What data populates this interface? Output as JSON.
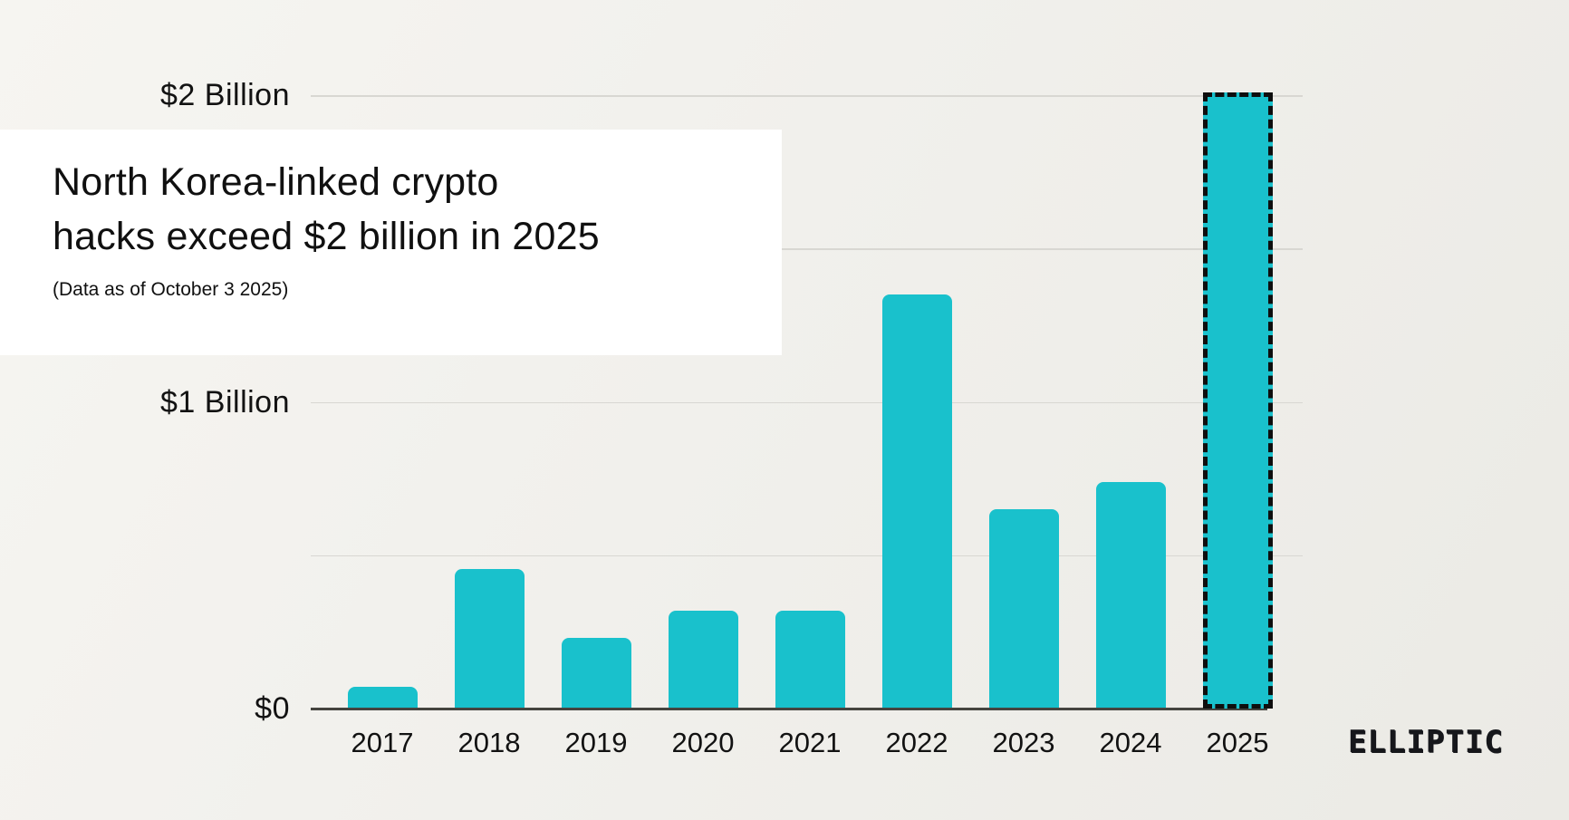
{
  "title_card": {
    "title_line1": "North Korea-linked crypto",
    "title_line2": "hacks exceed $2 billion in 2025",
    "subtitle": "(Data as of October 3 2025)"
  },
  "brand": {
    "logo_text": "ELLIPTIC"
  },
  "colors": {
    "background": "#f1f0ec",
    "card_background": "#ffffff",
    "bar": "#19c1cc",
    "highlight_outline": "#0e0e0e",
    "gridline": "#d8d7d2",
    "axis_line": "#45443f",
    "text": "#121212"
  },
  "chart_data": {
    "type": "bar",
    "title": "North Korea-linked crypto hacks exceed $2 billion in 2025",
    "subtitle": "(Data as of October 3 2025)",
    "categories": [
      "2017",
      "2018",
      "2019",
      "2020",
      "2021",
      "2022",
      "2023",
      "2024",
      "2025"
    ],
    "values_million_usd": [
      70,
      455,
      230,
      320,
      320,
      1350,
      650,
      740,
      2010
    ],
    "highlighted_category": "2025",
    "highlight_style": "black dashed outline",
    "bar_color": "#19c1cc",
    "xlabel": "",
    "ylabel": "",
    "y_axis_ticks": [
      {
        "label": "$2 Billion",
        "value_million_usd": 2000
      },
      {
        "label": "$1 Billion",
        "value_million_usd": 1000
      },
      {
        "label": "$0",
        "value_million_usd": 0
      }
    ],
    "gridline_values_million_usd": [
      500,
      1000,
      1500,
      2000
    ],
    "ylim_million_usd": [
      0,
      2050
    ],
    "grid": true,
    "legend": false,
    "source_brand": "ELLIPTIC"
  }
}
